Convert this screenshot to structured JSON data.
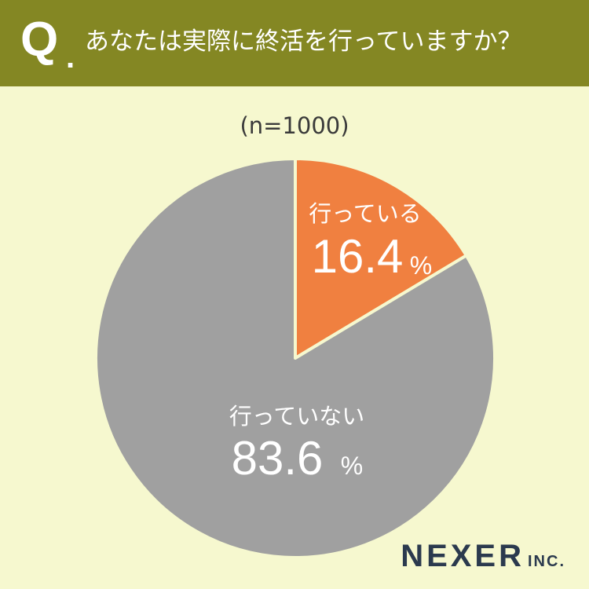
{
  "header": {
    "q_mark": "Q",
    "q_dot": ".",
    "question": "あなたは実際に終活を行っていますか？"
  },
  "sample_size": "(n=1000)",
  "colors": {
    "header_bg": "#848723",
    "page_bg": "#f6f8cf",
    "slice_yes": "#f08040",
    "slice_no": "#a0a0a0",
    "slice_border": "#f6f8cf"
  },
  "chart_data": {
    "type": "pie",
    "title": "あなたは実際に終活を行っていますか？",
    "n": 1000,
    "unit": "%",
    "slices": [
      {
        "label": "行っている",
        "value": 16.4,
        "display": "16.4",
        "color": "#f08040"
      },
      {
        "label": "行っていない",
        "value": 83.6,
        "display": "83.6",
        "color": "#a0a0a0"
      }
    ]
  },
  "logo": {
    "main": "NEXER",
    "sub": "INC."
  }
}
